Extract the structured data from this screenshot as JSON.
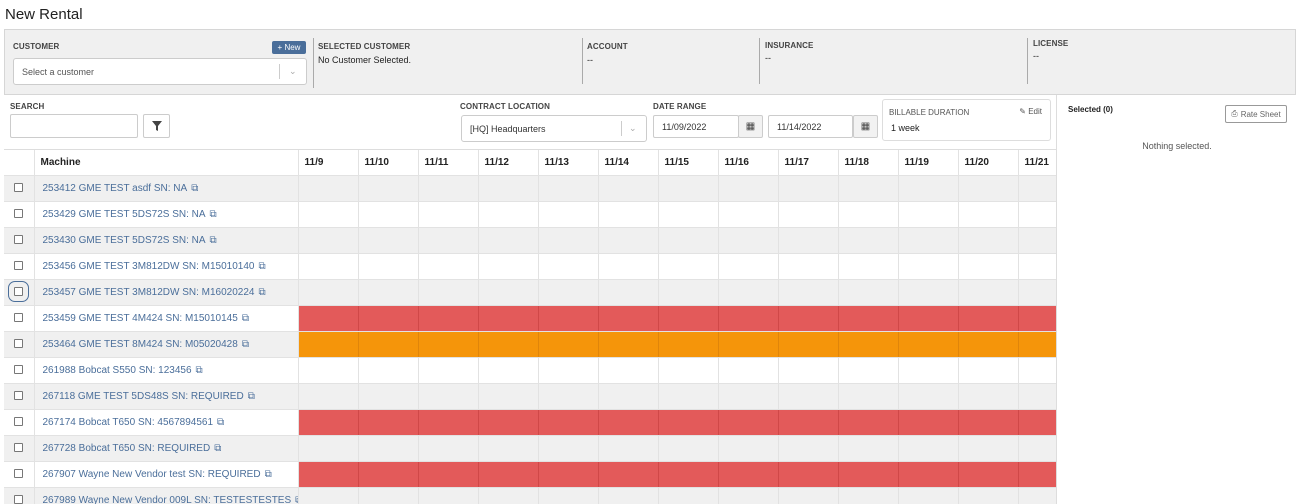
{
  "page": {
    "title": "New Rental"
  },
  "customer": {
    "label": "CUSTOMER",
    "new_label": "+ New",
    "select_placeholder": "Select a customer",
    "selected_label": "SELECTED CUSTOMER",
    "selected_value": "No Customer Selected.",
    "account_label": "ACCOUNT",
    "account_value": "--",
    "insurance_label": "INSURANCE",
    "insurance_value": "--",
    "license_label": "LICENSE",
    "license_value": "--"
  },
  "filters": {
    "search_label": "SEARCH",
    "search_value": "",
    "location_label": "CONTRACT LOCATION",
    "location_value": "[HQ] Headquarters",
    "date_label": "DATE RANGE",
    "date_start": "11/09/2022",
    "date_end": "11/14/2022",
    "billable_label": "BILLABLE DURATION",
    "billable_value": "1 week",
    "edit_label": "Edit"
  },
  "grid": {
    "machine_header": "Machine",
    "dates": [
      "11/9",
      "11/10",
      "11/11",
      "11/12",
      "11/13",
      "11/14",
      "11/15",
      "11/16",
      "11/17",
      "11/18",
      "11/19",
      "11/20",
      "11/21"
    ],
    "rows": [
      {
        "label": "253412 GME TEST asdf SN: NA",
        "status": "none"
      },
      {
        "label": "253429 GME TEST 5DS72S SN: NA",
        "status": "none"
      },
      {
        "label": "253430 GME TEST 5DS72S SN: NA",
        "status": "none"
      },
      {
        "label": "253456 GME TEST 3M812DW SN: M15010140",
        "status": "none"
      },
      {
        "label": "253457 GME TEST 3M812DW SN: M16020224",
        "status": "none"
      },
      {
        "label": "253459 GME TEST 4M424 SN: M15010145",
        "status": "red"
      },
      {
        "label": "253464 GME TEST 8M424 SN: M05020428",
        "status": "orange"
      },
      {
        "label": "261988 Bobcat S550 SN: 123456",
        "status": "none"
      },
      {
        "label": "267118 GME TEST 5DS48S SN: REQUIRED",
        "status": "none"
      },
      {
        "label": "267174 Bobcat T650 SN: 4567894561",
        "status": "red"
      },
      {
        "label": "267728 Bobcat T650 SN: REQUIRED",
        "status": "none"
      },
      {
        "label": "267907 Wayne New Vendor test SN: REQUIRED",
        "status": "red"
      },
      {
        "label": "267989 Wayne New Vendor 009L SN: TESTESTESTES",
        "status": "none"
      }
    ],
    "status_colors": {
      "red": "#e35a5a",
      "orange": "#f5950a"
    }
  },
  "selection": {
    "title": "Selected (0)",
    "rate_sheet_label": "Rate Sheet",
    "empty_text": "Nothing selected."
  }
}
